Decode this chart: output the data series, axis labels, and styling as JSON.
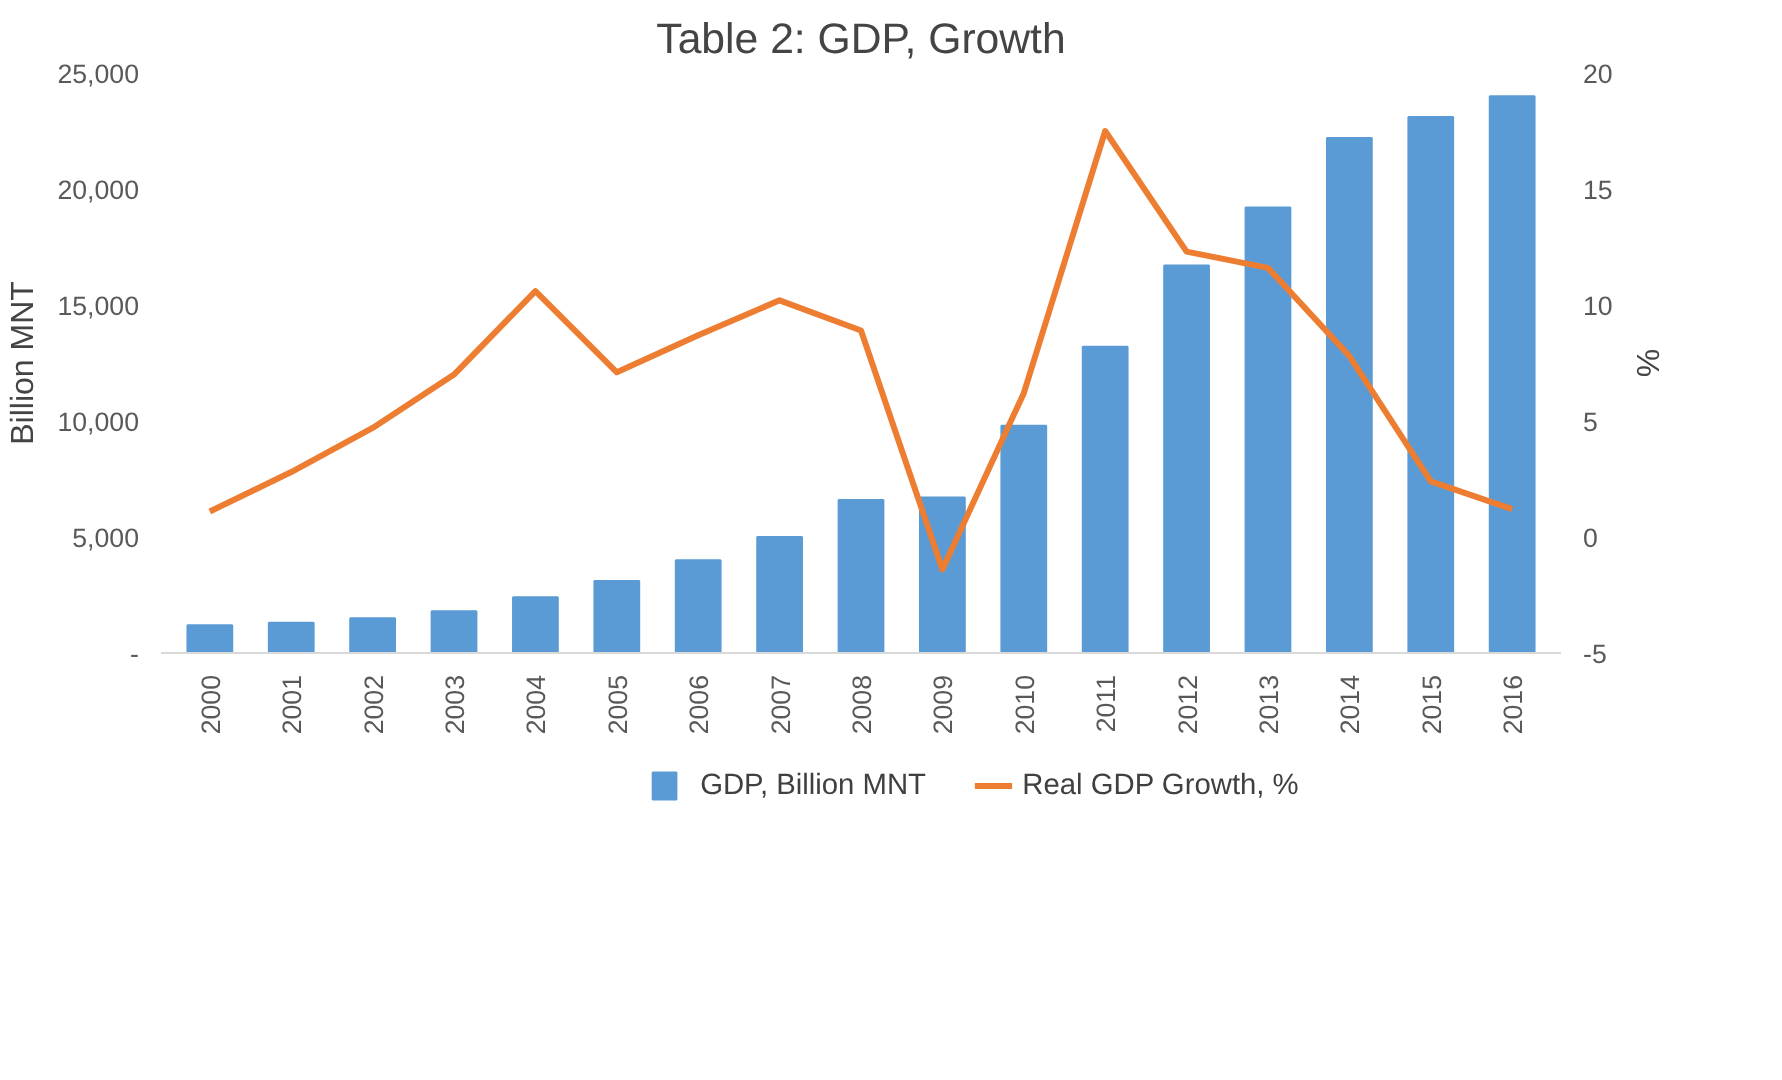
{
  "chart_data": {
    "type": "bar",
    "title": "Table 2: GDP, Growth",
    "ylabel": "Billion MNT",
    "y2label": "%",
    "categories": [
      "2000",
      "2001",
      "2002",
      "2003",
      "2004",
      "2005",
      "2006",
      "2007",
      "2008",
      "2009",
      "2010",
      "2011",
      "2012",
      "2013",
      "2014",
      "2015",
      "2016"
    ],
    "series": [
      {
        "name": "GDP, Billion MNT",
        "color": "#5b9bd5",
        "values": [
          1200,
          1300,
          1500,
          1800,
          2400,
          3100,
          4000,
          5000,
          6600,
          6700,
          9800,
          13200,
          16700,
          19200,
          22200,
          23100,
          24000
        ]
      },
      {
        "name": "Real GDP Growth, %",
        "type": "line",
        "axis": "y2",
        "color": "#ed7d31",
        "values": [
          1.1,
          2.8,
          4.7,
          7.0,
          10.6,
          7.1,
          8.7,
          10.2,
          8.9,
          -1.4,
          6.2,
          17.5,
          12.3,
          11.6,
          7.8,
          2.4,
          1.2
        ]
      }
    ],
    "ylim": [
      0,
      25000
    ],
    "yticks": [
      {
        "value": 0,
        "label": "-"
      },
      {
        "value": 5000,
        "label": "5,000"
      },
      {
        "value": 10000,
        "label": "10,000"
      },
      {
        "value": 15000,
        "label": "15,000"
      },
      {
        "value": 20000,
        "label": "20,000"
      },
      {
        "value": 25000,
        "label": "25,000"
      }
    ],
    "y2lim": [
      -5,
      20
    ],
    "y2ticks": [
      -5,
      0,
      5,
      10,
      15,
      20
    ],
    "grid": false,
    "legend": "bottom",
    "marker": "none",
    "line_style": "solid"
  }
}
